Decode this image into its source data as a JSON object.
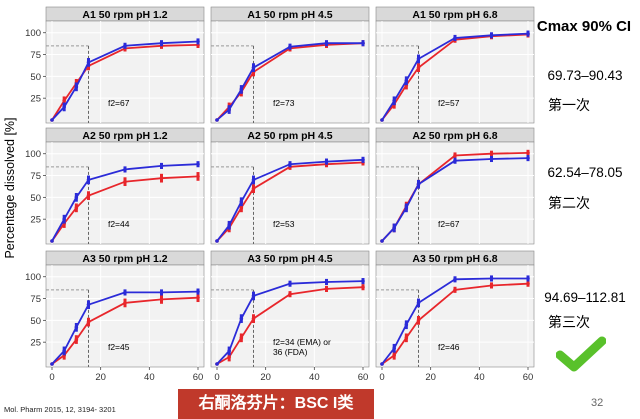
{
  "figure": {
    "y_axis_label": "Percentage dissolved [%]",
    "citation": "Mol. Pharm 2015, 12, 3194- 3201",
    "caption": "右酮洛芬片：BSC I类",
    "page_number": "32",
    "colors": {
      "test": "#e8262b",
      "reference": "#2b2bd8",
      "panel_bg": "#f2f2f2",
      "reference_line": "#999999",
      "check": "#59c12b"
    },
    "icons": [
      "checkmark-icon"
    ]
  },
  "ci_panel": {
    "header": "Cmax 90% CI",
    "rows": [
      {
        "value": "69.73–90.43",
        "rank": "第一次"
      },
      {
        "value": "62.54–78.05",
        "rank": "第二次"
      },
      {
        "value": "94.69–112.81",
        "rank": "第三次"
      }
    ]
  },
  "chart_data": [
    {
      "type": "line",
      "title": "A1 50 rpm pH 1.2",
      "annotation": "f2=67",
      "x": [
        0,
        5,
        10,
        15,
        30,
        45,
        60
      ],
      "xlim": [
        0,
        60
      ],
      "ylim": [
        0,
        110
      ],
      "y_ticks": [
        25,
        50,
        75,
        100
      ],
      "x_ticks": [
        0,
        20,
        40,
        60
      ],
      "reference_lines": {
        "x": 15,
        "y": 85
      },
      "series": [
        {
          "values": [
            0,
            22,
            42,
            62,
            82,
            85,
            86
          ]
        },
        {
          "values": [
            0,
            15,
            38,
            66,
            85,
            88,
            90
          ]
        }
      ]
    },
    {
      "type": "line",
      "title": "A1 50 rpm pH 4.5",
      "annotation": "f2=73",
      "x": [
        0,
        5,
        10,
        15,
        30,
        45,
        60
      ],
      "xlim": [
        0,
        60
      ],
      "ylim": [
        0,
        110
      ],
      "y_ticks": [
        25,
        50,
        75,
        100
      ],
      "x_ticks": [
        0,
        20,
        40,
        60
      ],
      "reference_lines": {
        "x": 15,
        "y": 85
      },
      "series": [
        {
          "values": [
            0,
            15,
            32,
            55,
            82,
            86,
            88
          ]
        },
        {
          "values": [
            0,
            12,
            35,
            60,
            84,
            88,
            88
          ]
        }
      ]
    },
    {
      "type": "line",
      "title": "A1 50 rpm pH 6.8",
      "annotation": "f2=57",
      "x": [
        0,
        5,
        10,
        15,
        30,
        45,
        60
      ],
      "xlim": [
        0,
        60
      ],
      "ylim": [
        0,
        110
      ],
      "y_ticks": [
        25,
        50,
        75,
        100
      ],
      "x_ticks": [
        0,
        20,
        40,
        60
      ],
      "reference_lines": {
        "x": 15,
        "y": 85
      },
      "series": [
        {
          "values": [
            0,
            18,
            40,
            60,
            92,
            96,
            98
          ]
        },
        {
          "values": [
            0,
            22,
            45,
            70,
            94,
            97,
            99
          ]
        }
      ]
    },
    {
      "type": "line",
      "title": "A2 50 rpm pH 1.2",
      "annotation": "f2=44",
      "x": [
        0,
        5,
        10,
        15,
        30,
        45,
        60
      ],
      "xlim": [
        0,
        60
      ],
      "ylim": [
        0,
        110
      ],
      "y_ticks": [
        25,
        50,
        75,
        100
      ],
      "x_ticks": [
        0,
        20,
        40,
        60
      ],
      "reference_lines": {
        "x": 15,
        "y": 85
      },
      "series": [
        {
          "values": [
            0,
            20,
            38,
            52,
            68,
            72,
            74
          ]
        },
        {
          "values": [
            0,
            25,
            50,
            70,
            82,
            86,
            88
          ]
        }
      ]
    },
    {
      "type": "line",
      "title": "A2 50 rpm pH 4.5",
      "annotation": "f2=53",
      "x": [
        0,
        5,
        10,
        15,
        30,
        45,
        60
      ],
      "xlim": [
        0,
        60
      ],
      "ylim": [
        0,
        110
      ],
      "y_ticks": [
        25,
        50,
        75,
        100
      ],
      "x_ticks": [
        0,
        20,
        40,
        60
      ],
      "reference_lines": {
        "x": 15,
        "y": 85
      },
      "series": [
        {
          "values": [
            0,
            15,
            38,
            60,
            85,
            88,
            90
          ]
        },
        {
          "values": [
            0,
            18,
            45,
            70,
            88,
            91,
            93
          ]
        }
      ]
    },
    {
      "type": "line",
      "title": "A2 50 rpm pH 6.8",
      "annotation": "f2=67",
      "x": [
        0,
        5,
        10,
        15,
        30,
        45,
        60
      ],
      "xlim": [
        0,
        60
      ],
      "ylim": [
        0,
        110
      ],
      "y_ticks": [
        25,
        50,
        75,
        100
      ],
      "x_ticks": [
        0,
        20,
        40,
        60
      ],
      "reference_lines": {
        "x": 15,
        "y": 85
      },
      "series": [
        {
          "values": [
            0,
            15,
            40,
            65,
            98,
            100,
            101
          ]
        },
        {
          "values": [
            0,
            15,
            38,
            65,
            92,
            94,
            95
          ]
        }
      ]
    },
    {
      "type": "line",
      "title": "A3 50 rpm pH 1.2",
      "annotation": "f2=45",
      "x": [
        0,
        5,
        10,
        15,
        30,
        45,
        60
      ],
      "xlim": [
        0,
        60
      ],
      "ylim": [
        0,
        110
      ],
      "y_ticks": [
        25,
        50,
        75,
        100
      ],
      "x_ticks": [
        0,
        20,
        40,
        60
      ],
      "reference_lines": {
        "x": 15,
        "y": 85
      },
      "series": [
        {
          "values": [
            0,
            10,
            28,
            48,
            70,
            74,
            76
          ]
        },
        {
          "values": [
            0,
            15,
            42,
            68,
            82,
            82,
            83
          ]
        }
      ]
    },
    {
      "type": "line",
      "title": "A3 50 rpm pH 4.5",
      "annotation": "f2=34 (EMA) or\n36 (FDA)",
      "x": [
        0,
        5,
        10,
        15,
        30,
        45,
        60
      ],
      "xlim": [
        0,
        60
      ],
      "ylim": [
        0,
        110
      ],
      "y_ticks": [
        25,
        50,
        75,
        100
      ],
      "x_ticks": [
        0,
        20,
        40,
        60
      ],
      "reference_lines": {
        "x": 15,
        "y": 85
      },
      "series": [
        {
          "values": [
            0,
            8,
            30,
            52,
            80,
            86,
            88
          ]
        },
        {
          "values": [
            0,
            15,
            52,
            78,
            92,
            94,
            95
          ]
        }
      ]
    },
    {
      "type": "line",
      "title": "A3 50 rpm pH 6.8",
      "annotation": "f2=46",
      "x": [
        0,
        5,
        10,
        15,
        30,
        45,
        60
      ],
      "xlim": [
        0,
        60
      ],
      "ylim": [
        0,
        110
      ],
      "y_ticks": [
        25,
        50,
        75,
        100
      ],
      "x_ticks": [
        0,
        20,
        40,
        60
      ],
      "reference_lines": {
        "x": 15,
        "y": 85
      },
      "series": [
        {
          "values": [
            0,
            10,
            30,
            50,
            85,
            90,
            92
          ]
        },
        {
          "values": [
            0,
            18,
            45,
            70,
            97,
            98,
            98
          ]
        }
      ]
    }
  ]
}
